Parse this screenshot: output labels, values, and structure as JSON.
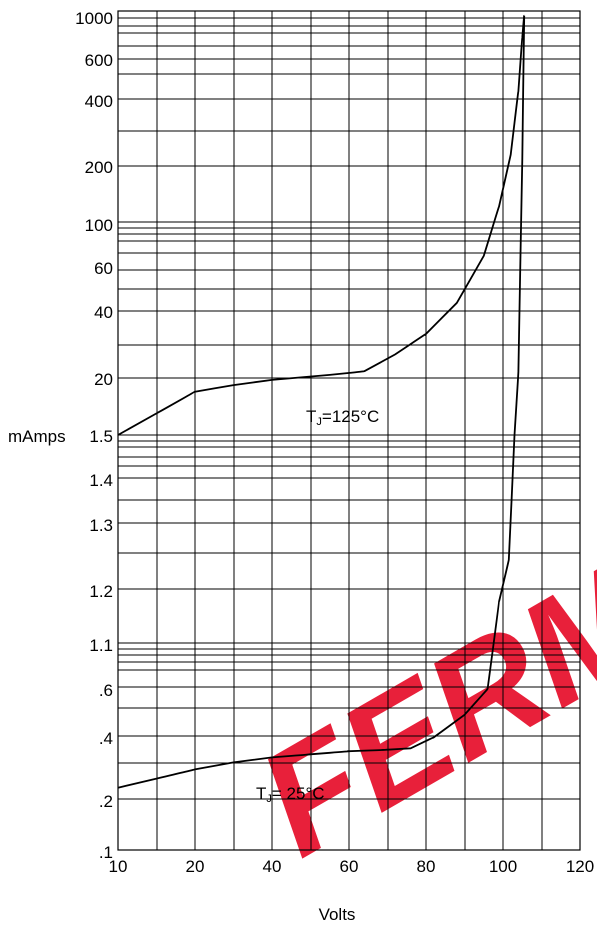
{
  "chart_data": {
    "type": "line",
    "title": "",
    "xlabel": "Volts",
    "ylabel": "mAmps",
    "xlim": [
      10,
      120
    ],
    "x_ticks": [
      "10",
      "20",
      "40",
      "60",
      "80",
      "100",
      "120"
    ],
    "y_tick_labels": [
      "1000",
      "600",
      "400",
      "200",
      "100",
      "60",
      "40",
      "20",
      "1.5",
      "1.4",
      "1.3",
      "1.2",
      "1.1",
      ".6",
      ".4",
      ".2",
      ".1"
    ],
    "grid": true,
    "legend": "none",
    "series": [
      {
        "name": "TJ=125°C",
        "label_main": "T",
        "label_sub": "J",
        "label_rest": "=125°C",
        "points": [
          [
            10,
            1.5
          ],
          [
            20,
            16
          ],
          [
            30,
            17.2
          ],
          [
            40,
            18.2
          ],
          [
            55,
            19.2
          ],
          [
            64,
            20
          ],
          [
            72,
            24
          ],
          [
            80,
            30
          ],
          [
            88,
            42
          ],
          [
            95,
            70
          ],
          [
            99,
            120
          ],
          [
            102,
            210
          ],
          [
            104,
            420
          ],
          [
            105,
            750
          ],
          [
            105.5,
            950
          ]
        ]
      },
      {
        "name": "TJ= 25°C",
        "label_main": "T",
        "label_sub": "J",
        "label_rest": "= 25°C",
        "points": [
          [
            10,
            0.2
          ],
          [
            20,
            0.245
          ],
          [
            30,
            0.265
          ],
          [
            40,
            0.28
          ],
          [
            50,
            0.29
          ],
          [
            60,
            0.3
          ],
          [
            70,
            0.305
          ],
          [
            76,
            0.31
          ],
          [
            82,
            0.35
          ],
          [
            90,
            0.45
          ],
          [
            96,
            0.6
          ],
          [
            99,
            1.1
          ],
          [
            101.5,
            1.2
          ],
          [
            103,
            1.5
          ],
          [
            104,
            20
          ],
          [
            105,
            200
          ],
          [
            105.5,
            950
          ]
        ]
      }
    ],
    "watermark": "FERM",
    "colors": {
      "grid": "#000000",
      "line": "#000000",
      "watermark": "#e8203a"
    }
  }
}
